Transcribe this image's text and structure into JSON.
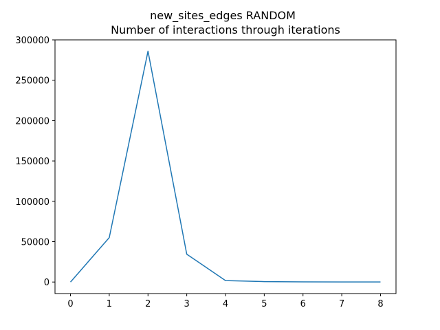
{
  "chart_data": {
    "type": "line",
    "title_line1": "new_sites_edges RANDOM",
    "title_line2": "Number of interactions through iterations",
    "xlabel": "",
    "ylabel": "",
    "x": [
      0,
      1,
      2,
      3,
      4,
      5,
      6,
      7,
      8
    ],
    "series": [
      {
        "values": [
          0,
          55000,
          286000,
          34500,
          1800,
          500,
          200,
          100,
          100
        ],
        "color": "#1f77b4"
      }
    ],
    "xlim": [
      -0.4,
      8.4
    ],
    "ylim": [
      -14300,
      300000
    ],
    "xticks": [
      0,
      1,
      2,
      3,
      4,
      5,
      6,
      7,
      8
    ],
    "yticks": [
      0,
      50000,
      100000,
      150000,
      200000,
      250000,
      300000
    ],
    "xtick_labels": [
      "0",
      "1",
      "2",
      "3",
      "4",
      "5",
      "6",
      "7",
      "8"
    ],
    "ytick_labels": [
      "0",
      "50000",
      "100000",
      "150000",
      "200000",
      "250000",
      "300000"
    ],
    "grid": false,
    "legend": "none"
  }
}
